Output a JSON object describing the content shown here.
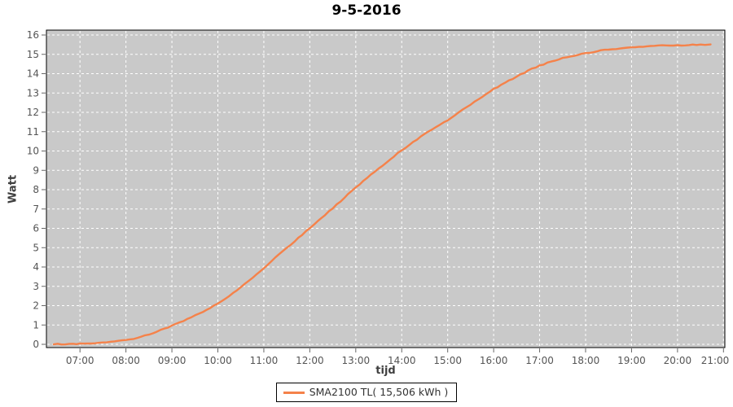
{
  "chart_data": {
    "type": "line",
    "title": "9-5-2016",
    "xlabel": "tijd",
    "ylabel": "Watt",
    "grid": true,
    "legend_position": "bottom-center",
    "plot_background": "#c9c9c9",
    "grid_color": "#ffffff",
    "border_color": "#000000",
    "tick_color": "#666666",
    "tick_label_color": "#555555",
    "xlim_hours": [
      6.27,
      21.03
    ],
    "ylim": [
      0,
      16
    ],
    "y_ticks": [
      0,
      1,
      2,
      3,
      4,
      5,
      6,
      7,
      8,
      9,
      10,
      11,
      12,
      13,
      14,
      15,
      16
    ],
    "x_ticks": [
      {
        "h": 7,
        "label": "07:00"
      },
      {
        "h": 8,
        "label": "08:00"
      },
      {
        "h": 9,
        "label": "09:00"
      },
      {
        "h": 10,
        "label": "10:00"
      },
      {
        "h": 11,
        "label": "11:00"
      },
      {
        "h": 12,
        "label": "12:00"
      },
      {
        "h": 13,
        "label": "13:00"
      },
      {
        "h": 14,
        "label": "14:00"
      },
      {
        "h": 15,
        "label": "15:00"
      },
      {
        "h": 16,
        "label": "16:00"
      },
      {
        "h": 17,
        "label": "17:00"
      },
      {
        "h": 18,
        "label": "18:00"
      },
      {
        "h": 19,
        "label": "19:00"
      },
      {
        "h": 20,
        "label": "20:00"
      },
      {
        "h": 21,
        "label": "21:00"
      }
    ],
    "series": [
      {
        "name": "SMA2100 TL( 15,506 kWh )",
        "color": "#f5824a",
        "points": [
          [
            6.43,
            0.0
          ],
          [
            6.6,
            0.01
          ],
          [
            6.85,
            0.02
          ],
          [
            7.0,
            0.03
          ],
          [
            7.17,
            0.05
          ],
          [
            7.33,
            0.07
          ],
          [
            7.5,
            0.1
          ],
          [
            7.67,
            0.14
          ],
          [
            7.83,
            0.18
          ],
          [
            8.0,
            0.23
          ],
          [
            8.17,
            0.3
          ],
          [
            8.33,
            0.4
          ],
          [
            8.5,
            0.52
          ],
          [
            8.67,
            0.65
          ],
          [
            8.83,
            0.8
          ],
          [
            9.0,
            0.96
          ],
          [
            9.17,
            1.12
          ],
          [
            9.33,
            1.3
          ],
          [
            9.5,
            1.48
          ],
          [
            9.67,
            1.68
          ],
          [
            9.83,
            1.88
          ],
          [
            10.0,
            2.1
          ],
          [
            10.17,
            2.36
          ],
          [
            10.33,
            2.64
          ],
          [
            10.5,
            2.95
          ],
          [
            10.67,
            3.27
          ],
          [
            10.83,
            3.6
          ],
          [
            11.0,
            3.95
          ],
          [
            11.17,
            4.3
          ],
          [
            11.33,
            4.65
          ],
          [
            11.5,
            5.0
          ],
          [
            11.67,
            5.33
          ],
          [
            11.83,
            5.66
          ],
          [
            12.0,
            6.0
          ],
          [
            12.17,
            6.36
          ],
          [
            12.33,
            6.7
          ],
          [
            12.5,
            7.05
          ],
          [
            12.67,
            7.4
          ],
          [
            12.83,
            7.75
          ],
          [
            13.0,
            8.1
          ],
          [
            13.17,
            8.45
          ],
          [
            13.33,
            8.78
          ],
          [
            13.5,
            9.1
          ],
          [
            13.67,
            9.42
          ],
          [
            13.83,
            9.73
          ],
          [
            14.0,
            10.03
          ],
          [
            14.17,
            10.32
          ],
          [
            14.33,
            10.6
          ],
          [
            14.5,
            10.88
          ],
          [
            14.67,
            11.14
          ],
          [
            14.83,
            11.38
          ],
          [
            15.0,
            11.6
          ],
          [
            15.17,
            11.88
          ],
          [
            15.33,
            12.15
          ],
          [
            15.5,
            12.4
          ],
          [
            15.67,
            12.68
          ],
          [
            15.83,
            12.95
          ],
          [
            16.0,
            13.2
          ],
          [
            16.17,
            13.42
          ],
          [
            16.33,
            13.64
          ],
          [
            16.5,
            13.85
          ],
          [
            16.67,
            14.05
          ],
          [
            16.83,
            14.25
          ],
          [
            17.0,
            14.42
          ],
          [
            17.17,
            14.56
          ],
          [
            17.33,
            14.69
          ],
          [
            17.5,
            14.8
          ],
          [
            17.67,
            14.9
          ],
          [
            17.83,
            14.98
          ],
          [
            18.0,
            15.06
          ],
          [
            18.17,
            15.13
          ],
          [
            18.33,
            15.19
          ],
          [
            18.5,
            15.24
          ],
          [
            18.67,
            15.29
          ],
          [
            18.83,
            15.33
          ],
          [
            19.0,
            15.36
          ],
          [
            19.17,
            15.39
          ],
          [
            19.33,
            15.41
          ],
          [
            19.5,
            15.43
          ],
          [
            19.67,
            15.45
          ],
          [
            19.83,
            15.46
          ],
          [
            20.0,
            15.47
          ],
          [
            20.17,
            15.48
          ],
          [
            20.33,
            15.49
          ],
          [
            20.5,
            15.5
          ],
          [
            20.6,
            15.5
          ],
          [
            20.72,
            15.51
          ]
        ]
      }
    ]
  }
}
